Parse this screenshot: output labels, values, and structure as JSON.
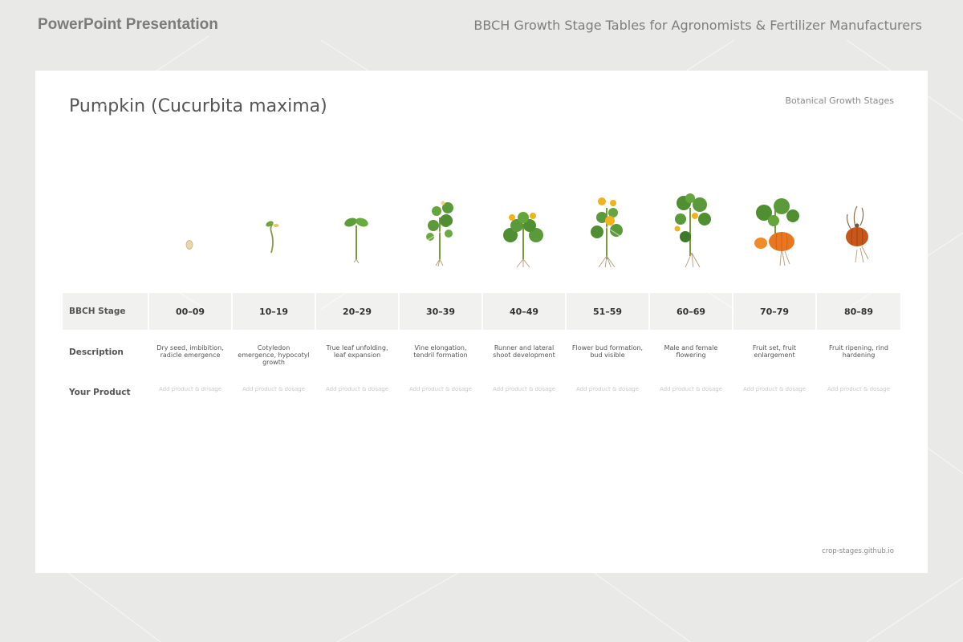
{
  "header": {
    "left": "PowerPoint Presentation",
    "right": "BBCH Growth Stage Tables for Agronomists & Fertilizer Manufacturers"
  },
  "slide": {
    "title": "Pumpkin (Cucurbita maxima)",
    "subtitle": "Botanical Growth Stages",
    "footer": "crop-stages.github.io"
  },
  "table": {
    "row_labels": {
      "stage": "BBCH Stage",
      "description": "Description",
      "product": "Your Product"
    },
    "stages": [
      {
        "code": "00–09",
        "description": "Dry seed, imbibition, radicle emergence",
        "product": "Add product & dosage"
      },
      {
        "code": "10–19",
        "description": "Cotyledon emergence, hypocotyl growth",
        "product": "Add product & dosage"
      },
      {
        "code": "20–29",
        "description": "True leaf unfolding, leaf expansion",
        "product": "Add product & dosage"
      },
      {
        "code": "30–39",
        "description": "Vine elongation, tendril formation",
        "product": "Add product & dosage"
      },
      {
        "code": "40–49",
        "description": "Runner and lateral shoot development",
        "product": "Add product & dosage"
      },
      {
        "code": "51–59",
        "description": "Flower bud formation, bud visible",
        "product": "Add product & dosage"
      },
      {
        "code": "60–69",
        "description": "Male and female flowering",
        "product": "Add product & dosage"
      },
      {
        "code": "70–79",
        "description": "Fruit set, fruit enlargement",
        "product": "Add product & dosage"
      },
      {
        "code": "80–89",
        "description": "Fruit ripening, rind hardening",
        "product": "Add product & dosage"
      }
    ]
  },
  "plant_icons": [
    "seed-icon",
    "seedling-icon",
    "sprout-icon",
    "vine-icon",
    "flowering-plant-icon",
    "budding-plant-icon",
    "fruiting-plant-icon",
    "pumpkin-plant-icon",
    "ripe-pumpkin-icon"
  ],
  "colors": {
    "page_bg": "#e9e9e7",
    "slide_bg": "#ffffff",
    "table_row_bg": "#f1f2ef",
    "leaf_green": "#5a9a3a",
    "flower_yellow": "#f2b21b",
    "pumpkin_orange": "#e8771f"
  }
}
